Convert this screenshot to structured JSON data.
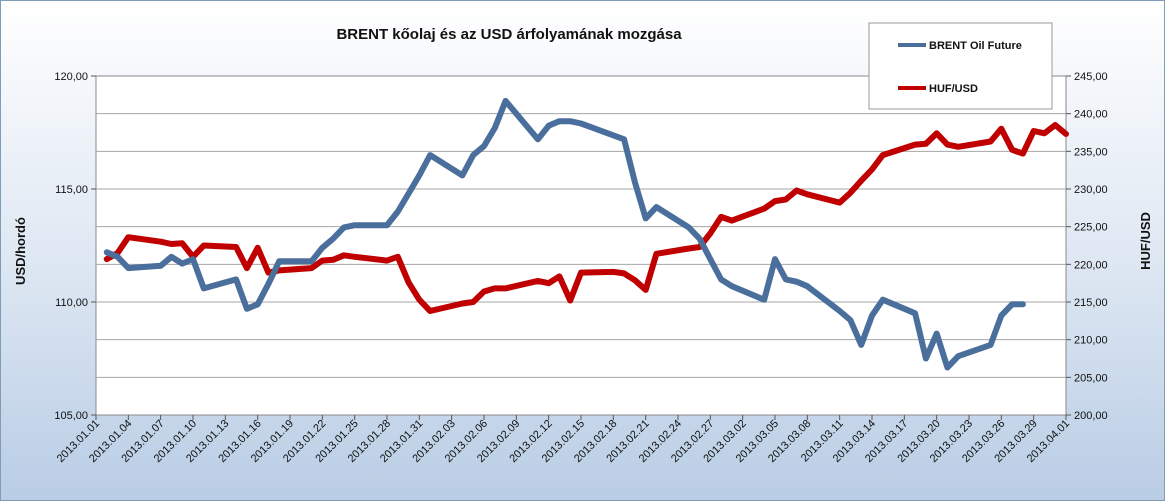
{
  "chart_data": {
    "type": "line",
    "title": "BRENT kőolaj és az USD árfolyamának mozgása",
    "ylabel_left": "USD/hordó",
    "ylabel_right": "HUF/USD",
    "x_ticks": [
      "2013.01.01",
      "2013.01.04",
      "2013.01.07",
      "2013.01.10",
      "2013.01.13",
      "2013.01.16",
      "2013.01.19",
      "2013.01.22",
      "2013.01.25",
      "2013.01.28",
      "2013.01.31",
      "2013.02.03",
      "2013.02.06",
      "2013.02.09",
      "2013.02.12",
      "2013.02.15",
      "2013.02.18",
      "2013.02.21",
      "2013.02.24",
      "2013.02.27",
      "2013.03.02",
      "2013.03.05",
      "2013.03.08",
      "2013.03.11",
      "2013.03.14",
      "2013.03.17",
      "2013.03.20",
      "2013.03.23",
      "2013.03.26",
      "2013.03.29",
      "2013.04.01"
    ],
    "y_left_ticks": [
      "105,00",
      "110,00",
      "115,00",
      "120,00"
    ],
    "y_left_lim": [
      105,
      120
    ],
    "y_right_ticks": [
      "200,00",
      "205,00",
      "210,00",
      "215,00",
      "220,00",
      "225,00",
      "230,00",
      "235,00",
      "240,00",
      "245,00"
    ],
    "y_right_lim": [
      200,
      245
    ],
    "grid": true,
    "legend_position": "top-right",
    "series": [
      {
        "name": "BRENT Oil Future",
        "color": "#4a6f9c",
        "axis": "left",
        "points": [
          [
            "2013.01.02",
            112.2
          ],
          [
            "2013.01.03",
            112.0
          ],
          [
            "2013.01.04",
            111.5
          ],
          [
            "2013.01.07",
            111.6
          ],
          [
            "2013.01.08",
            112.0
          ],
          [
            "2013.01.09",
            111.7
          ],
          [
            "2013.01.10",
            111.9
          ],
          [
            "2013.01.11",
            110.6
          ],
          [
            "2013.01.14",
            111.0
          ],
          [
            "2013.01.15",
            109.7
          ],
          [
            "2013.01.16",
            109.9
          ],
          [
            "2013.01.17",
            110.8
          ],
          [
            "2013.01.18",
            111.8
          ],
          [
            "2013.01.21",
            111.8
          ],
          [
            "2013.01.22",
            112.4
          ],
          [
            "2013.01.23",
            112.8
          ],
          [
            "2013.01.24",
            113.3
          ],
          [
            "2013.01.25",
            113.4
          ],
          [
            "2013.01.28",
            113.4
          ],
          [
            "2013.01.29",
            114.0
          ],
          [
            "2013.01.30",
            114.8
          ],
          [
            "2013.01.31",
            115.6
          ],
          [
            "2013.02.01",
            116.5
          ],
          [
            "2013.02.04",
            115.6
          ],
          [
            "2013.02.05",
            116.5
          ],
          [
            "2013.02.06",
            116.9
          ],
          [
            "2013.02.07",
            117.7
          ],
          [
            "2013.02.08",
            118.9
          ],
          [
            "2013.02.11",
            117.2
          ],
          [
            "2013.02.12",
            117.8
          ],
          [
            "2013.02.13",
            118.0
          ],
          [
            "2013.02.14",
            118.0
          ],
          [
            "2013.02.15",
            117.9
          ],
          [
            "2013.02.19",
            117.2
          ],
          [
            "2013.02.20",
            115.3
          ],
          [
            "2013.02.21",
            113.7
          ],
          [
            "2013.02.22",
            114.2
          ],
          [
            "2013.02.25",
            113.3
          ],
          [
            "2013.02.26",
            112.8
          ],
          [
            "2013.02.27",
            111.9
          ],
          [
            "2013.02.28",
            111.0
          ],
          [
            "2013.03.01",
            110.7
          ],
          [
            "2013.03.04",
            110.1
          ],
          [
            "2013.03.05",
            111.9
          ],
          [
            "2013.03.06",
            111.0
          ],
          [
            "2013.03.07",
            110.9
          ],
          [
            "2013.03.08",
            110.7
          ],
          [
            "2013.03.11",
            109.6
          ],
          [
            "2013.03.12",
            109.2
          ],
          [
            "2013.03.13",
            108.1
          ],
          [
            "2013.03.14",
            109.4
          ],
          [
            "2013.03.15",
            110.1
          ],
          [
            "2013.03.18",
            109.5
          ],
          [
            "2013.03.19",
            107.5
          ],
          [
            "2013.03.20",
            108.6
          ],
          [
            "2013.03.21",
            107.1
          ],
          [
            "2013.03.22",
            107.6
          ],
          [
            "2013.03.25",
            108.1
          ],
          [
            "2013.03.26",
            109.4
          ],
          [
            "2013.03.27",
            109.9
          ],
          [
            "2013.03.28",
            109.9
          ]
        ]
      },
      {
        "name": "HUF/USD",
        "color": "#c00000",
        "axis": "right",
        "points": [
          [
            "2013.01.02",
            220.7
          ],
          [
            "2013.01.03",
            221.5
          ],
          [
            "2013.01.04",
            223.6
          ],
          [
            "2013.01.07",
            223.0
          ],
          [
            "2013.01.08",
            222.7
          ],
          [
            "2013.01.09",
            222.8
          ],
          [
            "2013.01.10",
            221.0
          ],
          [
            "2013.01.11",
            222.5
          ],
          [
            "2013.01.14",
            222.3
          ],
          [
            "2013.01.15",
            219.5
          ],
          [
            "2013.01.16",
            222.2
          ],
          [
            "2013.01.17",
            218.9
          ],
          [
            "2013.01.18",
            219.2
          ],
          [
            "2013.01.21",
            219.5
          ],
          [
            "2013.01.22",
            220.5
          ],
          [
            "2013.01.23",
            220.6
          ],
          [
            "2013.01.24",
            221.2
          ],
          [
            "2013.01.25",
            221.0
          ],
          [
            "2013.01.28",
            220.5
          ],
          [
            "2013.01.29",
            221.0
          ],
          [
            "2013.01.30",
            217.6
          ],
          [
            "2013.01.31",
            215.3
          ],
          [
            "2013.02.01",
            213.8
          ],
          [
            "2013.02.04",
            214.8
          ],
          [
            "2013.02.05",
            215.0
          ],
          [
            "2013.02.06",
            216.4
          ],
          [
            "2013.02.07",
            216.8
          ],
          [
            "2013.02.08",
            216.8
          ],
          [
            "2013.02.11",
            217.8
          ],
          [
            "2013.02.12",
            217.5
          ],
          [
            "2013.02.13",
            218.4
          ],
          [
            "2013.02.14",
            215.2
          ],
          [
            "2013.02.15",
            218.9
          ],
          [
            "2013.02.18",
            219.0
          ],
          [
            "2013.02.19",
            218.8
          ],
          [
            "2013.02.20",
            217.9
          ],
          [
            "2013.02.21",
            216.6
          ],
          [
            "2013.02.22",
            221.4
          ],
          [
            "2013.02.25",
            222.1
          ],
          [
            "2013.02.26",
            222.3
          ],
          [
            "2013.02.27",
            224.1
          ],
          [
            "2013.02.28",
            226.3
          ],
          [
            "2013.03.01",
            225.8
          ],
          [
            "2013.03.04",
            227.4
          ],
          [
            "2013.03.05",
            228.4
          ],
          [
            "2013.03.06",
            228.6
          ],
          [
            "2013.03.07",
            229.8
          ],
          [
            "2013.03.08",
            229.3
          ],
          [
            "2013.03.11",
            228.2
          ],
          [
            "2013.03.12",
            229.5
          ],
          [
            "2013.03.13",
            231.1
          ],
          [
            "2013.03.14",
            232.6
          ],
          [
            "2013.03.15",
            234.5
          ],
          [
            "2013.03.18",
            235.9
          ],
          [
            "2013.03.19",
            236.0
          ],
          [
            "2013.03.20",
            237.4
          ],
          [
            "2013.03.21",
            235.9
          ],
          [
            "2013.03.22",
            235.6
          ],
          [
            "2013.03.25",
            236.3
          ],
          [
            "2013.03.26",
            238.0
          ],
          [
            "2013.03.27",
            235.2
          ],
          [
            "2013.03.28",
            234.7
          ],
          [
            "2013.03.29",
            237.7
          ],
          [
            "2013.03.30",
            237.4
          ],
          [
            "2013.03.31",
            238.5
          ],
          [
            "2013.04.01",
            237.3
          ]
        ]
      }
    ]
  }
}
